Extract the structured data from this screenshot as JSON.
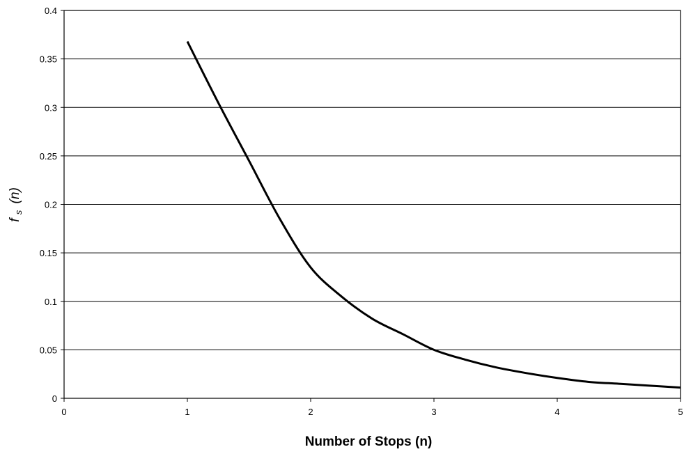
{
  "chart_data": {
    "type": "line",
    "title": "",
    "xlabel": "Number of Stops (n)",
    "ylabel": {
      "main": "f",
      "subscript": "s",
      "suffix": "(n)"
    },
    "xlim": [
      0,
      5
    ],
    "ylim": [
      0,
      0.4
    ],
    "x_ticks": [
      0,
      1,
      2,
      3,
      4,
      5
    ],
    "y_ticks": [
      0,
      0.05,
      0.1,
      0.15,
      0.2,
      0.25,
      0.3,
      0.35,
      0.4
    ],
    "x_tick_labels": [
      "0",
      "1",
      "2",
      "3",
      "4",
      "5"
    ],
    "y_tick_labels": [
      "0",
      "0.05",
      "0.1",
      "0.15",
      "0.2",
      "0.25",
      "0.3",
      "0.35",
      "0.4"
    ],
    "grid": "horizontal",
    "legend": "none",
    "series": [
      {
        "color": "#000000",
        "x": [
          1.0,
          1.25,
          1.5,
          1.75,
          2.0,
          2.25,
          2.5,
          2.75,
          3.0,
          3.25,
          3.5,
          3.75,
          4.0,
          4.25,
          4.5,
          4.75,
          5.0
        ],
        "y": [
          0.368,
          0.305,
          0.245,
          0.185,
          0.135,
          0.105,
          0.082,
          0.066,
          0.05,
          0.04,
          0.032,
          0.026,
          0.021,
          0.017,
          0.015,
          0.013,
          0.011
        ]
      }
    ]
  }
}
